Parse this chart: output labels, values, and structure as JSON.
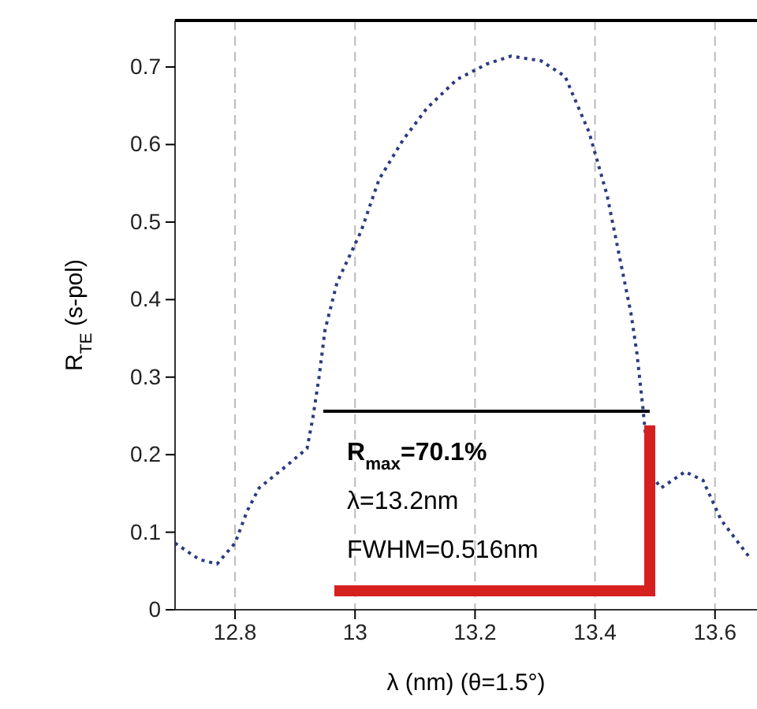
{
  "chart_data": {
    "type": "line",
    "xlabel": "λ (nm) (θ=1.5°)",
    "ylabel": "R$_{TE}$ (s-pol)",
    "x": [
      12.7,
      12.74,
      12.77,
      12.8,
      12.82,
      12.84,
      12.88,
      12.92,
      12.93,
      12.94,
      12.95,
      12.97,
      13.01,
      13.04,
      13.08,
      13.12,
      13.17,
      13.22,
      13.26,
      13.31,
      13.35,
      13.39,
      13.42,
      13.46,
      13.47,
      13.48,
      13.49,
      13.51,
      13.55,
      13.58,
      13.61,
      13.66
    ],
    "series": [
      {
        "color": "#2b3a80",
        "values": [
          0.086,
          0.065,
          0.059,
          0.086,
          0.127,
          0.157,
          0.182,
          0.208,
          0.249,
          0.3,
          0.361,
          0.422,
          0.488,
          0.555,
          0.606,
          0.647,
          0.684,
          0.704,
          0.714,
          0.708,
          0.688,
          0.616,
          0.535,
          0.382,
          0.33,
          0.259,
          0.178,
          0.157,
          0.178,
          0.167,
          0.116,
          0.065
        ]
      }
    ],
    "xlim": [
      12.7,
      13.67
    ],
    "ylim": [
      0,
      0.76
    ],
    "xticks": [
      12.8,
      13,
      13.2,
      13.4,
      13.6
    ],
    "yticks": [
      0,
      0.1,
      0.2,
      0.3,
      0.4,
      0.5,
      0.6,
      0.7
    ],
    "grid": "x",
    "line_style": "dotted",
    "marker": "none",
    "annotations": [
      "R$_{max}$=70.1%",
      "λ=13.2nm",
      "FWHM=0.516nm"
    ]
  }
}
